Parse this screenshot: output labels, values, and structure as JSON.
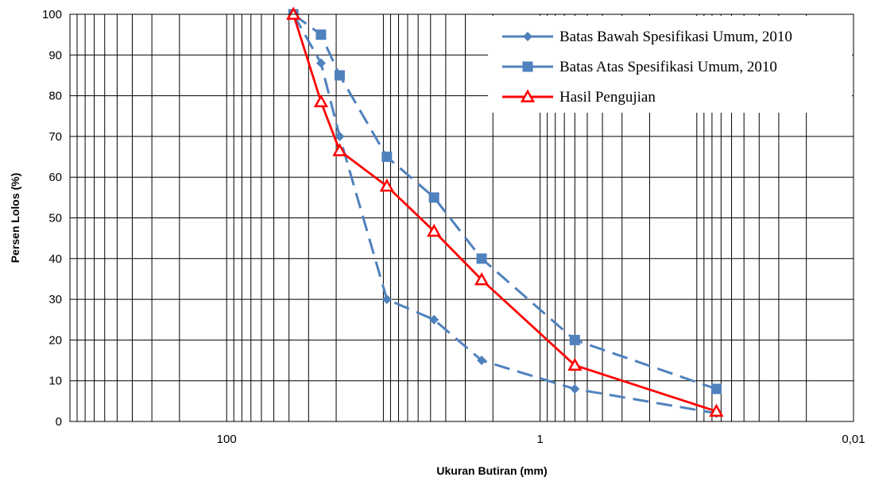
{
  "chart_data": {
    "type": "line",
    "xscale": "log",
    "x_reversed": true,
    "xlim": [
      0.01,
      1000
    ],
    "ylim": [
      0,
      100
    ],
    "xlabel": "Ukuran Butiran (mm)",
    "ylabel": "Persen Lolos (%)",
    "x_tick_labels": [
      "100",
      "1",
      "0,01"
    ],
    "y_tick_labels": [
      "0",
      "10",
      "20",
      "30",
      "40",
      "50",
      "60",
      "70",
      "80",
      "90",
      "100"
    ],
    "grid": true,
    "legend_position": "top-right",
    "series": [
      {
        "name": "Batas Bawah Spesifikasi Umum, 2010",
        "color": "#4f81bd",
        "marker": "diamond",
        "line_style": "dashed",
        "x": [
          37.5,
          25,
          19,
          9.5,
          4.75,
          2.36,
          0.6,
          0.075
        ],
        "y": [
          100,
          88,
          70,
          30,
          25,
          15,
          8,
          2
        ]
      },
      {
        "name": "Batas Atas Spesifikasi Umum, 2010",
        "color": "#4f81bd",
        "marker": "square",
        "line_style": "dashed",
        "x": [
          37.5,
          25,
          19,
          9.5,
          4.75,
          2.36,
          0.6,
          0.075
        ],
        "y": [
          100,
          95,
          85,
          65,
          55,
          40,
          20,
          8
        ]
      },
      {
        "name": "Hasil Pengujian",
        "color": "#ff0000",
        "marker": "triangle",
        "line_style": "solid",
        "x": [
          37.5,
          25,
          19,
          9.5,
          4.75,
          2.36,
          0.6,
          0.075
        ],
        "y": [
          100,
          78.5,
          66.5,
          57.8,
          46.7,
          34.8,
          13.8,
          2.5
        ]
      }
    ]
  }
}
